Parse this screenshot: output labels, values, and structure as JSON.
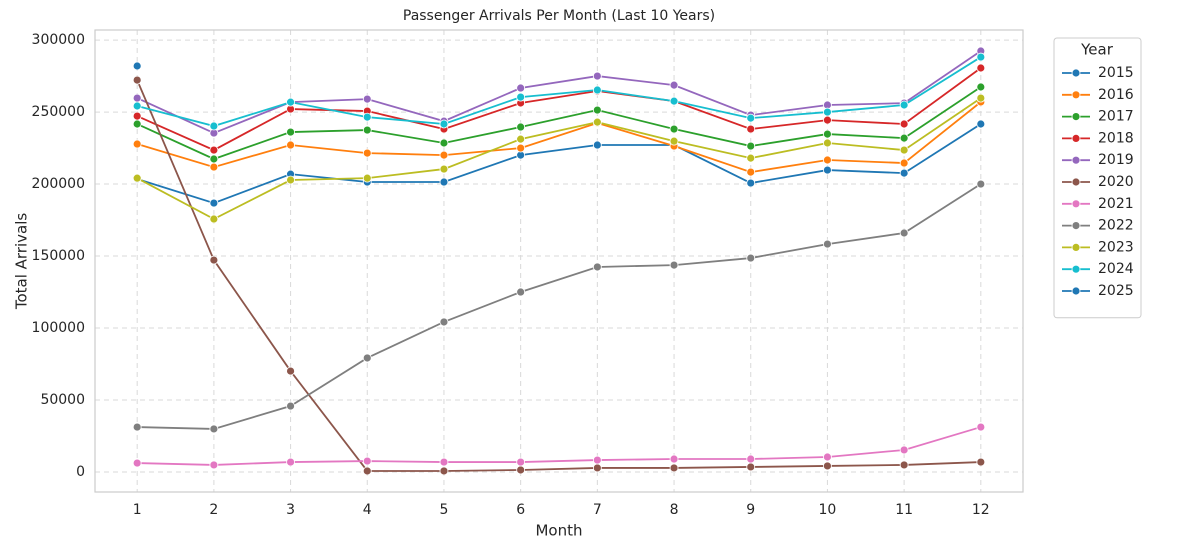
{
  "chart_data": {
    "type": "line",
    "title": "Passenger Arrivals Per Month (Last 10 Years)",
    "x_label": "Month",
    "y_label": "Total Arrivals",
    "legend_title": "Year",
    "legend": "outside-upper-right",
    "grid": true,
    "x": [
      1,
      2,
      3,
      4,
      5,
      6,
      7,
      8,
      9,
      10,
      11,
      12
    ],
    "xlim": [
      0.45,
      12.55
    ],
    "xticks": [
      1,
      2,
      3,
      4,
      5,
      6,
      7,
      8,
      9,
      10,
      11,
      12
    ],
    "ylim": [
      -13900,
      307000
    ],
    "yticks": [
      0,
      50000,
      100000,
      150000,
      200000,
      250000,
      300000
    ],
    "series": [
      {
        "name": "2015",
        "color": "#1f77b4",
        "values": [
          203500,
          186800,
          206900,
          201400,
          201400,
          220100,
          227100,
          227100,
          200700,
          209700,
          207600,
          241700
        ]
      },
      {
        "name": "2016",
        "color": "#ff7f0e",
        "values": [
          227800,
          211800,
          227100,
          221500,
          220100,
          225000,
          242400,
          226400,
          208300,
          216700,
          214600,
          257000
        ]
      },
      {
        "name": "2017",
        "color": "#2ca02c",
        "values": [
          241700,
          217400,
          236100,
          237500,
          228500,
          239600,
          251400,
          238200,
          226400,
          234700,
          231900,
          267400
        ]
      },
      {
        "name": "2018",
        "color": "#d62728",
        "values": [
          247200,
          223600,
          252100,
          250700,
          238200,
          256300,
          264600,
          257600,
          238200,
          244400,
          241700,
          280600
        ]
      },
      {
        "name": "2019",
        "color": "#9467bd",
        "values": [
          259700,
          235400,
          256900,
          259000,
          243700,
          266700,
          275000,
          268700,
          247900,
          254900,
          256200,
          292400
        ]
      },
      {
        "name": "2020",
        "color": "#8c564b",
        "values": [
          272200,
          147200,
          70100,
          700,
          700,
          1400,
          2800,
          2800,
          3500,
          4200,
          4900,
          6900
        ]
      },
      {
        "name": "2021",
        "color": "#e377c2",
        "values": [
          6200,
          4900,
          6900,
          7600,
          6900,
          6900,
          8300,
          9000,
          9000,
          10400,
          15300,
          31200
        ]
      },
      {
        "name": "2022",
        "color": "#7f7f7f",
        "values": [
          31200,
          29900,
          45800,
          79200,
          104200,
          125000,
          142400,
          143700,
          148600,
          158300,
          166000,
          200000
        ]
      },
      {
        "name": "2023",
        "color": "#bcbd22",
        "values": [
          204100,
          175700,
          202800,
          204100,
          210400,
          231200,
          243000,
          229800,
          218000,
          228500,
          223600,
          259700
        ]
      },
      {
        "name": "2024",
        "color": "#17becf",
        "values": [
          254200,
          240300,
          256900,
          246500,
          241700,
          260400,
          265300,
          257600,
          245800,
          250000,
          254900,
          288200
        ]
      },
      {
        "name": "2025",
        "color": "#1f77b4",
        "values": [
          282000,
          null,
          null,
          null,
          null,
          null,
          null,
          null,
          null,
          null,
          null,
          null
        ]
      }
    ]
  }
}
